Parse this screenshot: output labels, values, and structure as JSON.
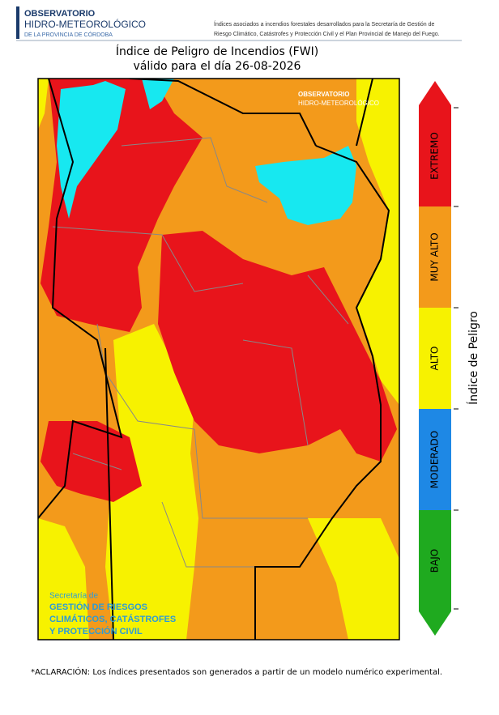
{
  "header": {
    "org_line1": "OBSERVATORIO",
    "org_line2": "HIDRO-METEOROLÓGICO",
    "org_line3": "DE LA PROVINCIA DE CÓRDOBA",
    "description_line1": "Índices asociados a incendios forestales desarrollados para la Secretaría de Gestión de",
    "description_line2": "Riesgo Climático, Catástrofes y Protección Civil y el Plan Provincial de Manejo del Fuego."
  },
  "map": {
    "title_line1": "Índice de Peligro de Incendios (FWI)",
    "title_line2": "válido para el día 26-08-2026",
    "watermark_top_line1": "OBSERVATORIO",
    "watermark_top_line2": "HIDRO-METEOROLÓGICO",
    "watermark_line1": "Secretaría de",
    "watermark_line2": "GESTIÓN DE RIESGOS",
    "watermark_line3": "CLIMÁTICOS, CATÁSTROFES",
    "watermark_line4": "Y PROTECCIÓN CIVIL"
  },
  "legend": {
    "title": "Índice de Peligro",
    "levels": [
      {
        "label": "EXTREMO",
        "color": "#e8141b"
      },
      {
        "label": "MUY ALTO",
        "color": "#f39a1b"
      },
      {
        "label": "ALTO",
        "color": "#f7f200"
      },
      {
        "label": "MODERADO",
        "color": "#1e88e5"
      },
      {
        "label": "BAJO",
        "color": "#1faa1f"
      }
    ]
  },
  "footnote": "*ACLARACIÓN: Los índices presentados son generados a partir de un modelo numérico experimental."
}
